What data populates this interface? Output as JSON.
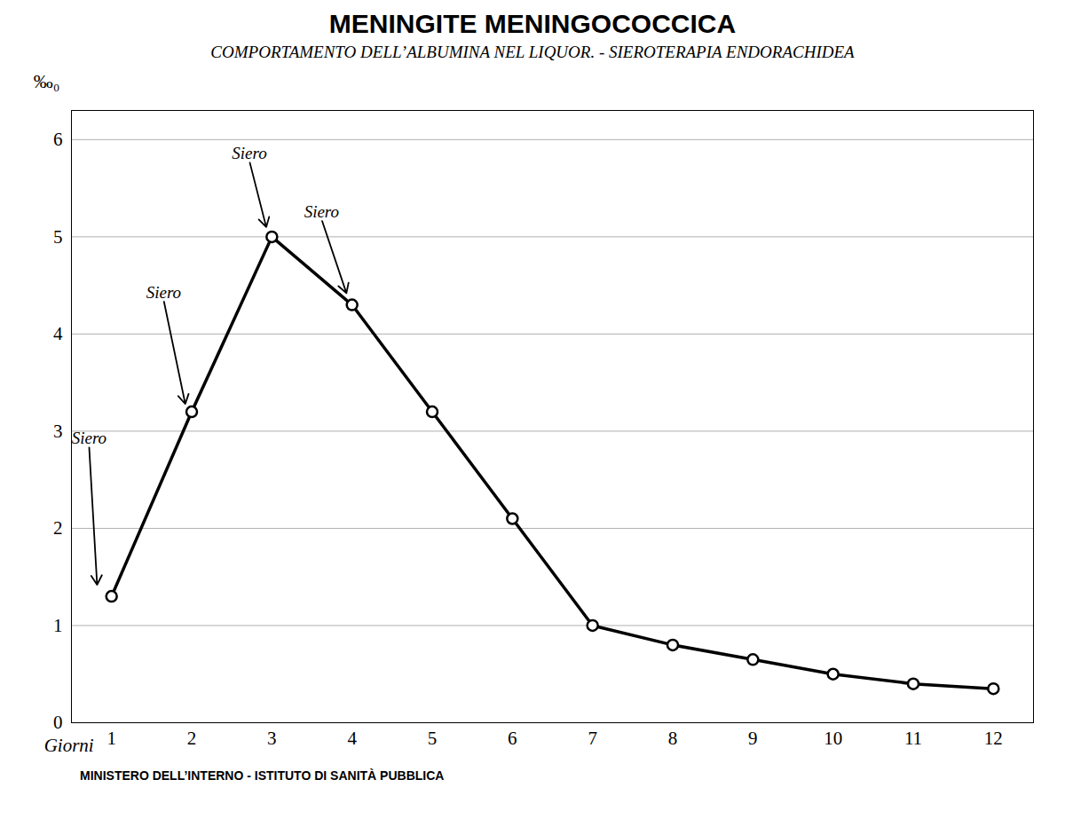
{
  "chart_data": {
    "type": "line",
    "title": "MENINGITE MENINGOCOCCICA",
    "subtitle": "COMPORTAMENTO DELL’ALBUMINA NEL LIQUOR. - SIEROTERAPIA ENDORACHIDEA",
    "caption": "MINISTERO DELL’INTERNO - ISTITUTO DI SANITÀ PUBBLICA",
    "ylabel": "‰₀",
    "xlabel": "Giorni",
    "x": [
      1,
      2,
      3,
      4,
      5,
      6,
      7,
      8,
      9,
      10,
      11,
      12
    ],
    "values": [
      1.3,
      3.2,
      5.0,
      4.3,
      3.2,
      2.1,
      1.0,
      0.8,
      0.65,
      0.5,
      0.4,
      0.35
    ],
    "color": "black",
    "marker": "circle",
    "xlim": [
      0.5,
      12.5
    ],
    "ylim": [
      0,
      6.3
    ],
    "xticks": [
      1,
      2,
      3,
      4,
      5,
      6,
      7,
      8,
      9,
      10,
      11,
      12
    ],
    "yticks": [
      0,
      1,
      2,
      3,
      4,
      5,
      6
    ],
    "grid": "y",
    "annotations": [
      {
        "text": "Siero",
        "x": 0.72,
        "y": 2.85,
        "arrow_x": 0.82,
        "arrow_y": 1.42
      },
      {
        "text": "Siero",
        "x": 1.65,
        "y": 4.35,
        "arrow_x": 1.92,
        "arrow_y": 3.28
      },
      {
        "text": "Siero",
        "x": 2.72,
        "y": 5.78,
        "arrow_x": 2.93,
        "arrow_y": 5.1
      },
      {
        "text": "Siero",
        "x": 3.62,
        "y": 5.18,
        "arrow_x": 3.93,
        "arrow_y": 4.42
      }
    ]
  }
}
